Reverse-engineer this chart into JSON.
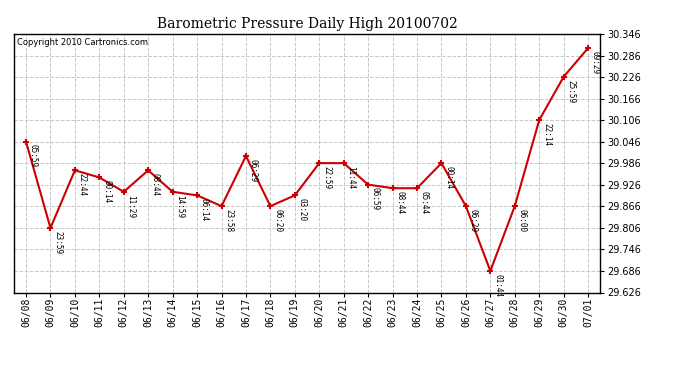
{
  "title": "Barometric Pressure Daily High 20100702",
  "copyright": "Copyright 2010 Cartronics.com",
  "dates": [
    "06/08",
    "06/09",
    "06/10",
    "06/11",
    "06/12",
    "06/13",
    "06/14",
    "06/15",
    "06/16",
    "06/17",
    "06/18",
    "06/19",
    "06/20",
    "06/21",
    "06/22",
    "06/23",
    "06/24",
    "06/25",
    "06/26",
    "06/27",
    "06/28",
    "06/29",
    "06/30",
    "07/01"
  ],
  "values": [
    30.047,
    29.806,
    29.967,
    29.947,
    29.907,
    29.967,
    29.907,
    29.897,
    29.867,
    30.007,
    29.867,
    29.897,
    29.987,
    29.987,
    29.927,
    29.917,
    29.917,
    29.987,
    29.867,
    29.686,
    29.867,
    30.107,
    30.228,
    30.308
  ],
  "times": [
    "05:59",
    "23:59",
    "22:44",
    "00:14",
    "11:29",
    "08:44",
    "14:59",
    "06:14",
    "23:58",
    "06:29",
    "06:20",
    "03:20",
    "22:59",
    "11:44",
    "06:59",
    "08:44",
    "05:44",
    "00:14",
    "06:29",
    "01:44",
    "06:00",
    "22:14",
    "25:59",
    "09:29"
  ],
  "line_color": "#cc0000",
  "marker_color": "#cc0000",
  "background_color": "#ffffff",
  "grid_color": "#c8c8c8",
  "ylim_min": 29.626,
  "ylim_max": 30.348,
  "ytick_step": 0.06,
  "fig_width": 6.9,
  "fig_height": 3.75,
  "dpi": 100
}
